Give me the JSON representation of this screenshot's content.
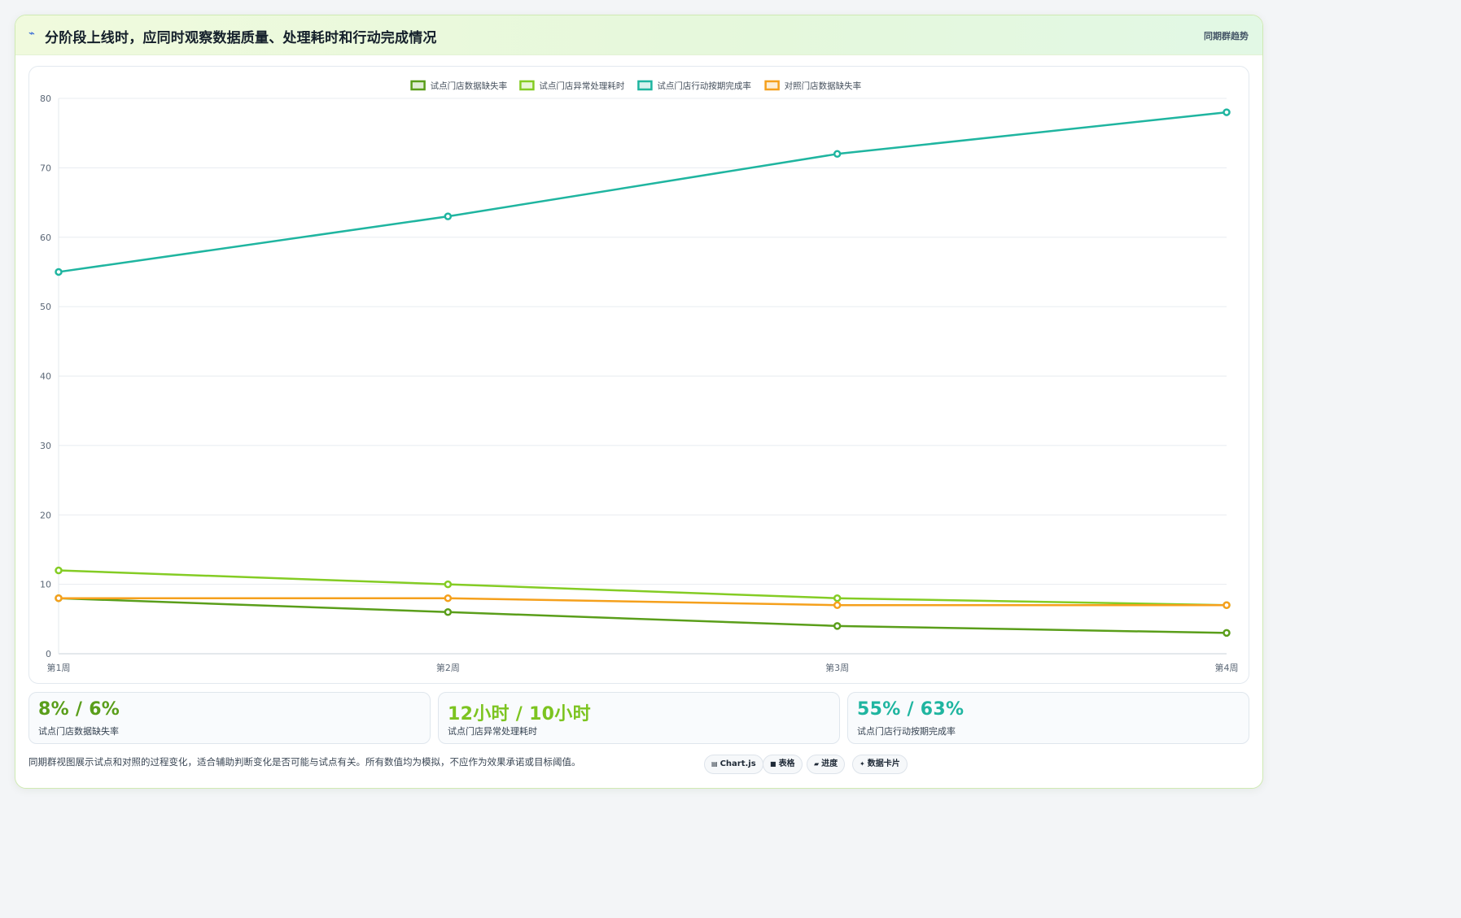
{
  "header": {
    "icon": "chart-line-icon",
    "title": "分阶段上线时，应同时观察数据质量、处理耗时和行动完成情况",
    "badge": "同期群趋势"
  },
  "chart_data": {
    "type": "line",
    "categories": [
      "第1周",
      "第2周",
      "第3周",
      "第4周"
    ],
    "ylim": [
      0,
      80
    ],
    "yticks": [
      0,
      10,
      20,
      30,
      40,
      50,
      60,
      70,
      80
    ],
    "grid": true,
    "legend_position": "top",
    "series": [
      {
        "name": "试点门店数据缺失率",
        "color": "#5a9e1a",
        "values": [
          8,
          6,
          4,
          3
        ]
      },
      {
        "name": "试点门店异常处理耗时",
        "color": "#84cc24",
        "values": [
          12,
          10,
          8,
          7
        ]
      },
      {
        "name": "试点门店行动按期完成率",
        "color": "#1fb5a0",
        "values": [
          55,
          63,
          72,
          78
        ]
      },
      {
        "name": "对照门店数据缺失率",
        "color": "#f5a01c",
        "values": [
          8,
          8,
          7,
          7
        ]
      }
    ]
  },
  "kpis": [
    {
      "value": "8% / 6%",
      "label": "试点门店数据缺失率",
      "color": "#5a9e1a"
    },
    {
      "value": "12小时 / 10小时",
      "label": "试点门店异常处理耗时",
      "color": "#7cc420"
    },
    {
      "value": "55% / 63%",
      "label": "试点门店行动按期完成率",
      "color": "#1fb5a0"
    }
  ],
  "footnote": "同期群视图展示试点和对照的过程变化，适合辅助判断变化是否可能与试点有关。所有数值均为模拟，不应作为效果承诺或目标阈值。",
  "chips": [
    {
      "icon": "chart-icon",
      "label": "Chart.js"
    },
    {
      "icon": "table-icon",
      "label": "表格"
    },
    {
      "icon": "progress-icon",
      "label": "进度"
    },
    {
      "icon": "card-icon",
      "label": "数据卡片"
    }
  ]
}
